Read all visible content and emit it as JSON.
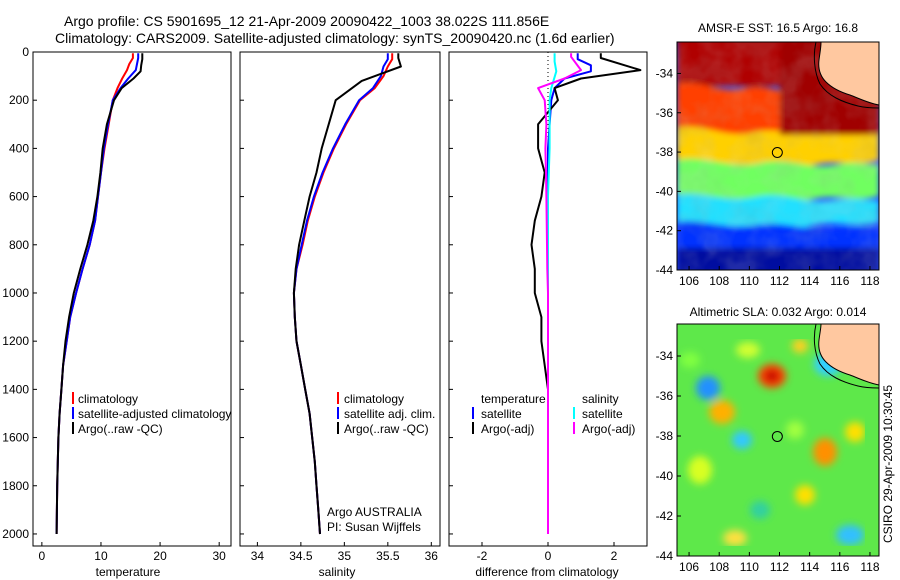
{
  "header": {
    "line1": "Argo profile: CS 5901695_12 21-Apr-2009 20090422_1003 38.022S 111.856E",
    "line2": "Climatology: CARS2009. Satellite-adjusted climatology: synTS_20090420.nc (1.6d earlier)"
  },
  "side_note": "CSIRO 29-Apr-2009 10:30:45",
  "colors": {
    "climatology": "#ff0000",
    "satellite": "#0000ff",
    "argo": "#000000",
    "salinity_satellite": "#00ffff",
    "salinity_argo": "#ff00ff",
    "land": "#ffc8a0"
  },
  "chart_data": [
    {
      "type": "line",
      "panel": "temperature",
      "xlabel": "temperature",
      "ylabel": "",
      "xlim": [
        -1.5,
        32
      ],
      "ylim": [
        2050,
        0
      ],
      "y_reversed": true,
      "xticks": [
        0,
        10,
        20,
        30
      ],
      "yticks": [
        0,
        200,
        400,
        600,
        800,
        1000,
        1200,
        1400,
        1600,
        1800,
        2000
      ],
      "legend": [
        "climatology",
        "satellite-adjusted climatology",
        "Argo(..raw -QC)"
      ],
      "legend_placement": "lower-right",
      "series": [
        {
          "name": "climatology",
          "color": "#ff0000",
          "points": [
            [
              15.4,
              5
            ],
            [
              15.4,
              25
            ],
            [
              14.8,
              50
            ],
            [
              14.4,
              75
            ],
            [
              13.6,
              110
            ],
            [
              12.8,
              150
            ],
            [
              12.0,
              200
            ],
            [
              11.3,
              300
            ],
            [
              10.6,
              400
            ],
            [
              10.0,
              500
            ],
            [
              9.5,
              600
            ],
            [
              9.0,
              700
            ],
            [
              8.1,
              800
            ],
            [
              6.9,
              900
            ],
            [
              5.8,
              1000
            ],
            [
              4.8,
              1100
            ],
            [
              4.2,
              1200
            ],
            [
              3.6,
              1300
            ],
            [
              3.3,
              1400
            ],
            [
              3.0,
              1500
            ],
            [
              2.8,
              1600
            ],
            [
              2.7,
              1700
            ],
            [
              2.6,
              1800
            ],
            [
              2.55,
              1900
            ],
            [
              2.5,
              2000
            ]
          ]
        },
        {
          "name": "satellite-adjusted climatology",
          "color": "#0000ff",
          "points": [
            [
              16.3,
              5
            ],
            [
              16.3,
              25
            ],
            [
              16.1,
              50
            ],
            [
              15.9,
              75
            ],
            [
              14.6,
              110
            ],
            [
              13.3,
              150
            ],
            [
              12.0,
              200
            ],
            [
              11.2,
              300
            ],
            [
              10.5,
              400
            ],
            [
              10.0,
              500
            ],
            [
              9.5,
              600
            ],
            [
              9.0,
              700
            ],
            [
              8.1,
              800
            ],
            [
              6.9,
              900
            ],
            [
              5.8,
              1000
            ],
            [
              4.8,
              1100
            ],
            [
              4.2,
              1200
            ],
            [
              3.6,
              1300
            ],
            [
              3.3,
              1400
            ],
            [
              3.0,
              1500
            ],
            [
              2.8,
              1600
            ],
            [
              2.7,
              1700
            ],
            [
              2.6,
              1800
            ],
            [
              2.55,
              1900
            ],
            [
              2.5,
              2000
            ]
          ]
        },
        {
          "name": "Argo(..raw -QC)",
          "color": "#000000",
          "points": [
            [
              17.0,
              5
            ],
            [
              17.0,
              30
            ],
            [
              16.8,
              55
            ],
            [
              16.7,
              80
            ],
            [
              15.5,
              110
            ],
            [
              13.5,
              150
            ],
            [
              12.2,
              200
            ],
            [
              11.0,
              300
            ],
            [
              10.3,
              400
            ],
            [
              9.9,
              500
            ],
            [
              9.4,
              600
            ],
            [
              8.7,
              700
            ],
            [
              7.7,
              800
            ],
            [
              6.5,
              900
            ],
            [
              5.4,
              1000
            ],
            [
              4.6,
              1100
            ],
            [
              4.0,
              1200
            ],
            [
              3.6,
              1300
            ],
            [
              3.3,
              1400
            ],
            [
              3.0,
              1500
            ],
            [
              2.8,
              1600
            ],
            [
              2.7,
              1700
            ],
            [
              2.6,
              1800
            ],
            [
              2.55,
              1900
            ],
            [
              2.5,
              2000
            ]
          ]
        }
      ]
    },
    {
      "type": "line",
      "panel": "salinity",
      "xlabel": "salinity",
      "ylabel": "",
      "xlim": [
        33.8,
        36.1
      ],
      "ylim": [
        2050,
        0
      ],
      "y_reversed": true,
      "xticks": [
        34,
        34.5,
        35,
        35.5,
        36
      ],
      "legend": [
        "climatology",
        "satellite adj. clim.",
        "Argo(..raw -QC)"
      ],
      "legend_placement": "lower-right",
      "annotation": [
        "Argo AUSTRALIA",
        "PI: Susan Wijffels"
      ],
      "series": [
        {
          "name": "climatology",
          "color": "#ff0000",
          "points": [
            [
              35.55,
              5
            ],
            [
              35.55,
              30
            ],
            [
              35.5,
              60
            ],
            [
              35.45,
              100
            ],
            [
              35.35,
              150
            ],
            [
              35.18,
              200
            ],
            [
              35.02,
              300
            ],
            [
              34.88,
              400
            ],
            [
              34.76,
              500
            ],
            [
              34.66,
              600
            ],
            [
              34.58,
              700
            ],
            [
              34.52,
              800
            ],
            [
              34.45,
              900
            ],
            [
              34.42,
              1000
            ],
            [
              34.43,
              1100
            ],
            [
              34.45,
              1200
            ],
            [
              34.5,
              1300
            ],
            [
              34.55,
              1400
            ],
            [
              34.6,
              1500
            ],
            [
              34.63,
              1600
            ],
            [
              34.66,
              1700
            ],
            [
              34.68,
              1800
            ],
            [
              34.7,
              1900
            ],
            [
              34.72,
              2000
            ]
          ]
        },
        {
          "name": "satellite adj. clim.",
          "color": "#0000ff",
          "points": [
            [
              35.5,
              5
            ],
            [
              35.5,
              30
            ],
            [
              35.45,
              60
            ],
            [
              35.42,
              100
            ],
            [
              35.33,
              150
            ],
            [
              35.17,
              200
            ],
            [
              35.01,
              300
            ],
            [
              34.87,
              400
            ],
            [
              34.75,
              500
            ],
            [
              34.65,
              600
            ],
            [
              34.57,
              700
            ],
            [
              34.51,
              800
            ],
            [
              34.45,
              900
            ],
            [
              34.42,
              1000
            ],
            [
              34.43,
              1100
            ],
            [
              34.45,
              1200
            ],
            [
              34.5,
              1300
            ],
            [
              34.55,
              1400
            ],
            [
              34.6,
              1500
            ],
            [
              34.63,
              1600
            ],
            [
              34.66,
              1700
            ],
            [
              34.68,
              1800
            ],
            [
              34.7,
              1900
            ],
            [
              34.72,
              2000
            ]
          ]
        },
        {
          "name": "Argo(..raw -QC)",
          "color": "#000000",
          "points": [
            [
              35.62,
              5
            ],
            [
              35.62,
              25
            ],
            [
              35.65,
              60
            ],
            [
              35.2,
              120
            ],
            [
              34.9,
              200
            ],
            [
              34.82,
              300
            ],
            [
              34.74,
              400
            ],
            [
              34.68,
              500
            ],
            [
              34.6,
              600
            ],
            [
              34.54,
              700
            ],
            [
              34.48,
              800
            ],
            [
              34.44,
              900
            ],
            [
              34.42,
              1000
            ],
            [
              34.43,
              1100
            ],
            [
              34.45,
              1200
            ],
            [
              34.5,
              1300
            ],
            [
              34.55,
              1400
            ],
            [
              34.6,
              1500
            ],
            [
              34.63,
              1600
            ],
            [
              34.66,
              1700
            ],
            [
              34.68,
              1800
            ],
            [
              34.7,
              1900
            ],
            [
              34.72,
              2000
            ]
          ]
        }
      ]
    },
    {
      "type": "line",
      "panel": "difference",
      "xlabel": "difference from climatology",
      "ylabel": "",
      "xlim": [
        -3,
        3
      ],
      "ylim": [
        2050,
        0
      ],
      "y_reversed": true,
      "xticks": [
        -2,
        0,
        2
      ],
      "zero_reference_line": true,
      "legend_groups": [
        {
          "title": "temperature",
          "entries": [
            "satellite",
            "Argo(-adj)"
          ]
        },
        {
          "title": "salinity",
          "entries": [
            "satellite",
            "Argo(-adj)"
          ]
        }
      ],
      "legend_placement": "lower-center",
      "series": [
        {
          "name": "temperature satellite",
          "color": "#0000ff",
          "points": [
            [
              0.9,
              5
            ],
            [
              0.9,
              30
            ],
            [
              1.3,
              55
            ],
            [
              1.3,
              80
            ],
            [
              0.5,
              110
            ],
            [
              0.2,
              150
            ],
            [
              0.1,
              200
            ],
            [
              0.05,
              300
            ],
            [
              0.0,
              400
            ],
            [
              0.0,
              600
            ],
            [
              0.0,
              800
            ],
            [
              0.0,
              1000
            ],
            [
              0.0,
              1500
            ],
            [
              0.0,
              2000
            ]
          ]
        },
        {
          "name": "temperature Argo(-adj)",
          "color": "#000000",
          "points": [
            [
              1.6,
              5
            ],
            [
              1.6,
              25
            ],
            [
              2.8,
              75
            ],
            [
              1.0,
              110
            ],
            [
              0.2,
              150
            ],
            [
              0.3,
              200
            ],
            [
              -0.3,
              300
            ],
            [
              -0.3,
              400
            ],
            [
              -0.1,
              500
            ],
            [
              -0.2,
              600
            ],
            [
              -0.4,
              700
            ],
            [
              -0.5,
              800
            ],
            [
              -0.4,
              900
            ],
            [
              -0.4,
              1000
            ],
            [
              -0.2,
              1100
            ],
            [
              -0.2,
              1200
            ],
            [
              -0.1,
              1300
            ],
            [
              0.0,
              1400
            ],
            [
              0.0,
              1500
            ],
            [
              0.0,
              1600
            ],
            [
              0.0,
              1700
            ],
            [
              0.0,
              1800
            ],
            [
              0.0,
              1900
            ],
            [
              0.0,
              2000
            ]
          ]
        },
        {
          "name": "salinity satellite",
          "color": "#00ffff",
          "points": [
            [
              0.2,
              5
            ],
            [
              0.2,
              40
            ],
            [
              0.25,
              80
            ],
            [
              0.1,
              150
            ],
            [
              0.05,
              200
            ],
            [
              0.05,
              400
            ],
            [
              0.0,
              600
            ],
            [
              0.0,
              1000
            ],
            [
              0.0,
              1500
            ],
            [
              0.0,
              2000
            ]
          ]
        },
        {
          "name": "salinity Argo(-adj)",
          "color": "#ff00ff",
          "points": [
            [
              0.7,
              5
            ],
            [
              0.7,
              20
            ],
            [
              1.0,
              75
            ],
            [
              0.5,
              110
            ],
            [
              -0.3,
              150
            ],
            [
              -0.1,
              200
            ],
            [
              -0.05,
              300
            ],
            [
              -0.08,
              400
            ],
            [
              -0.06,
              500
            ],
            [
              -0.05,
              600
            ],
            [
              -0.04,
              700
            ],
            [
              -0.03,
              800
            ],
            [
              -0.02,
              900
            ],
            [
              0.0,
              1000
            ],
            [
              0.0,
              1500
            ],
            [
              0.0,
              2000
            ]
          ]
        }
      ]
    },
    {
      "type": "heatmap",
      "panel": "sst_map",
      "title": "AMSR-E SST: 16.5 Argo: 16.8",
      "xlim": [
        105.2,
        118.6
      ],
      "ylim": [
        -44,
        -32.4
      ],
      "xticks": [
        106,
        108,
        110,
        112,
        114,
        116,
        118
      ],
      "yticks": [
        -34,
        -36,
        -38,
        -40,
        -42,
        -44
      ],
      "argo_position": {
        "lon": 111.856,
        "lat": -38.022
      },
      "colormap": "jet",
      "description_bands": "warm (dark red) north, orange/yellow mid, green/cyan and blue in the south"
    },
    {
      "type": "heatmap",
      "panel": "sla_map",
      "title": "Altimetric SLA: 0.032 Argo: 0.014",
      "xlim": [
        105.2,
        118.6
      ],
      "ylim": [
        -44,
        -32.4
      ],
      "xticks": [
        106,
        108,
        110,
        112,
        114,
        116,
        118
      ],
      "yticks": [
        -34,
        -36,
        -38,
        -40,
        -42,
        -44
      ],
      "argo_position": {
        "lon": 111.856,
        "lat": -38.022
      },
      "colormap": "jet"
    }
  ]
}
